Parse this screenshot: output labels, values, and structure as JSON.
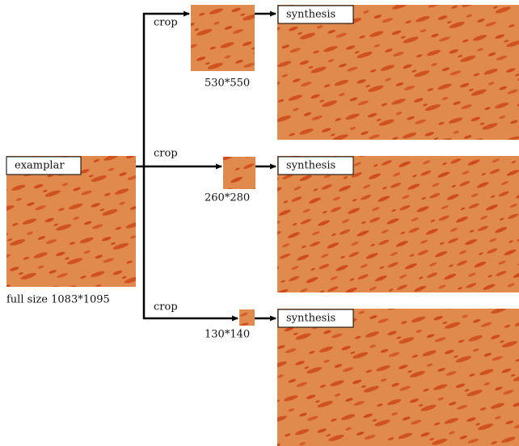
{
  "exemplar": {
    "label": "examplar",
    "caption": "full size 1083*1095"
  },
  "branches": [
    {
      "crop_label": "crop",
      "size_label": "530*550",
      "synthesis_label": "synthesis"
    },
    {
      "crop_label": "crop",
      "size_label": "260*280",
      "synthesis_label": "synthesis"
    },
    {
      "crop_label": "crop",
      "size_label": "130*140",
      "synthesis_label": "synthesis"
    }
  ]
}
